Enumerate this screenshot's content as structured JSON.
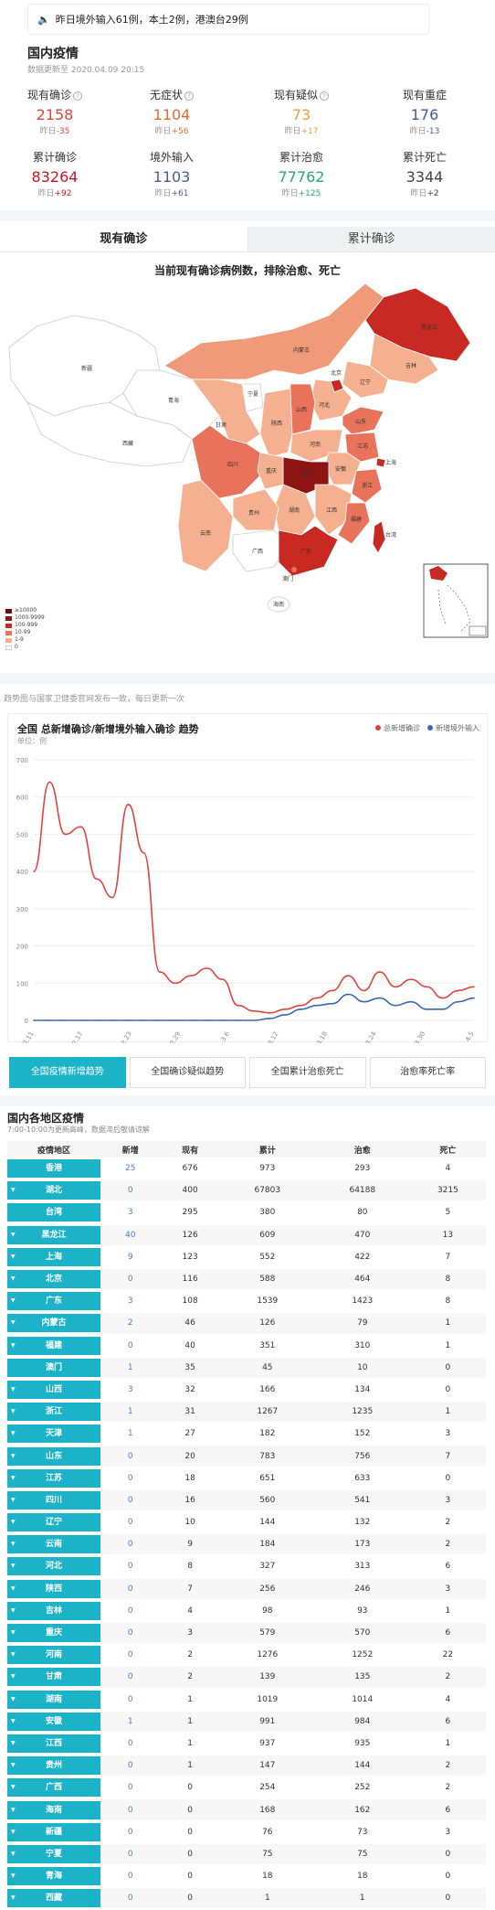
{
  "notice": {
    "text": "昨日境外输入61例，本土2例，港澳台29例"
  },
  "header": {
    "title": "国内疫情",
    "updated": "数据更新至 2020.04.09 20:15"
  },
  "stats": [
    {
      "label": "现有确诊",
      "value": "2158",
      "delta_label": "昨日",
      "delta": "-35",
      "color": "#e0443c",
      "delta_color": "#e0443c",
      "help": true
    },
    {
      "label": "无症状",
      "value": "1104",
      "delta_label": "昨日",
      "delta": "+56",
      "color": "#e36b2e",
      "delta_color": "#e36b2e",
      "help": true
    },
    {
      "label": "现有疑似",
      "value": "73",
      "delta_label": "昨日",
      "delta": "+17",
      "color": "#e8a23a",
      "delta_color": "#e8a23a",
      "help": true
    },
    {
      "label": "现有重症",
      "value": "176",
      "delta_label": "昨日",
      "delta": "-13",
      "color": "#4a5a9c",
      "delta_color": "#4a5a9c",
      "help": false
    },
    {
      "label": "累计确诊",
      "value": "83264",
      "delta_label": "昨日",
      "delta": "+92",
      "color": "#c8181e",
      "delta_color": "#c8181e",
      "help": false
    },
    {
      "label": "境外输入",
      "value": "1103",
      "delta_label": "昨日",
      "delta": "+61",
      "color": "#4a5a9c",
      "delta_color": "#4a5a9c",
      "help": false
    },
    {
      "label": "累计治愈",
      "value": "77762",
      "delta_label": "昨日",
      "delta": "+125",
      "color": "#2aa876",
      "delta_color": "#2aa876",
      "help": false
    },
    {
      "label": "累计死亡",
      "value": "3344",
      "delta_label": "昨日",
      "delta": "+2",
      "color": "#444444",
      "delta_color": "#444444",
      "help": false
    }
  ],
  "tabs": [
    "现有确诊",
    "累计确诊"
  ],
  "map": {
    "title": "当前现有确诊病例数，排除治愈、死亡",
    "legend": [
      {
        "label": "≥10000",
        "color": "#6b0a0a"
      },
      {
        "label": "1000-9999",
        "color": "#8e1414"
      },
      {
        "label": "100-999",
        "color": "#c82a23"
      },
      {
        "label": "10-99",
        "color": "#e8735a"
      },
      {
        "label": "1-9",
        "color": "#f5b08f"
      },
      {
        "label": "0",
        "color": "#ffffff"
      }
    ],
    "labels": [
      "新疆",
      "西藏",
      "青海",
      "甘肃",
      "内蒙古",
      "黑龙江",
      "吉林",
      "辽宁",
      "北京",
      "宁夏",
      "陕西",
      "山西",
      "河北",
      "山东",
      "河南",
      "四川",
      "重庆",
      "湖北",
      "安徽",
      "江苏",
      "上海",
      "浙江",
      "湖南",
      "江西",
      "福建",
      "贵州",
      "云南",
      "广西",
      "广东",
      "澳门",
      "海南",
      "台湾"
    ]
  },
  "trend": {
    "note": "趋势图与国家卫健委官网发布一致，每日更新一次"
  },
  "chart_data": {
    "type": "line",
    "title": "全国 总新增确诊/新增境外输入确诊 趋势",
    "unit": "单位：例",
    "x": [
      "2.12",
      "2.14",
      "2.16",
      "2.18",
      "2.20",
      "2.22",
      "2.24",
      "2.26",
      "2.28",
      "3.01",
      "3.03",
      "3.05",
      "3.07",
      "3.09",
      "3.11",
      "3.13",
      "3.15",
      "3.17",
      "3.19",
      "3.21",
      "3.23",
      "3.25",
      "3.27",
      "3.29",
      "3.31",
      "4.02",
      "4.04",
      "4.06",
      "4.08"
    ],
    "x_tick_labels": [
      "2.11",
      "2.17",
      "2.23",
      "2.29",
      "3.6",
      "3.12",
      "3.18",
      "3.24",
      "3.30",
      "4.5"
    ],
    "ylim": [
      0,
      700
    ],
    "yticks": [
      0,
      100,
      200,
      300,
      400,
      500,
      600,
      700
    ],
    "series": [
      {
        "name": "总新增确诊",
        "color": "#e0443c",
        "values": [
          400,
          640,
          500,
          520,
          380,
          330,
          580,
          450,
          130,
          100,
          120,
          140,
          110,
          40,
          25,
          20,
          30,
          40,
          60,
          80,
          120,
          80,
          130,
          90,
          110,
          90,
          60,
          80,
          90
        ]
      },
      {
        "name": "新增境外输入",
        "color": "#3a68b7",
        "values": [
          0,
          0,
          0,
          0,
          0,
          0,
          0,
          0,
          0,
          0,
          0,
          0,
          0,
          0,
          0,
          5,
          15,
          30,
          40,
          45,
          70,
          50,
          60,
          40,
          50,
          30,
          30,
          50,
          60
        ]
      }
    ],
    "grid": true,
    "legend": "top-right"
  },
  "buttons": [
    {
      "label": "全国疫情\n新增趋势",
      "selected": true
    },
    {
      "label": "全国确诊\n疑似趋势",
      "selected": false
    },
    {
      "label": "全国累计\n治愈死亡",
      "selected": false
    },
    {
      "label": "治愈率\n死亡率",
      "selected": false
    }
  ],
  "regions": {
    "title": "国内各地区疫情",
    "subtitle": "7:00-10:00为更新高峰，数据滞后敬请谅解",
    "headers": [
      "疫情地区",
      "新增",
      "现有",
      "累计",
      "治愈",
      "死亡"
    ],
    "rows": [
      {
        "name": "香港",
        "arrow": false,
        "new": "25",
        "cur": "676",
        "total": "973",
        "cured": "293",
        "dead": "4"
      },
      {
        "name": "湖北",
        "arrow": true,
        "new": "0",
        "cur": "400",
        "total": "67803",
        "cured": "64188",
        "dead": "3215"
      },
      {
        "name": "台湾",
        "arrow": false,
        "new": "3",
        "cur": "295",
        "total": "380",
        "cured": "80",
        "dead": "5"
      },
      {
        "name": "黑龙江",
        "arrow": true,
        "new": "40",
        "cur": "126",
        "total": "609",
        "cured": "470",
        "dead": "13"
      },
      {
        "name": "上海",
        "arrow": true,
        "new": "9",
        "cur": "123",
        "total": "552",
        "cured": "422",
        "dead": "7"
      },
      {
        "name": "北京",
        "arrow": true,
        "new": "0",
        "cur": "116",
        "total": "588",
        "cured": "464",
        "dead": "8"
      },
      {
        "name": "广东",
        "arrow": true,
        "new": "3",
        "cur": "108",
        "total": "1539",
        "cured": "1423",
        "dead": "8"
      },
      {
        "name": "内蒙古",
        "arrow": true,
        "new": "2",
        "cur": "46",
        "total": "126",
        "cured": "79",
        "dead": "1"
      },
      {
        "name": "福建",
        "arrow": true,
        "new": "0",
        "cur": "40",
        "total": "351",
        "cured": "310",
        "dead": "1"
      },
      {
        "name": "澳门",
        "arrow": false,
        "new": "1",
        "cur": "35",
        "total": "45",
        "cured": "10",
        "dead": "0"
      },
      {
        "name": "山西",
        "arrow": true,
        "new": "3",
        "cur": "32",
        "total": "166",
        "cured": "134",
        "dead": "0"
      },
      {
        "name": "浙江",
        "arrow": true,
        "new": "1",
        "cur": "31",
        "total": "1267",
        "cured": "1235",
        "dead": "1"
      },
      {
        "name": "天津",
        "arrow": true,
        "new": "1",
        "cur": "27",
        "total": "182",
        "cured": "152",
        "dead": "3"
      },
      {
        "name": "山东",
        "arrow": true,
        "new": "0",
        "cur": "20",
        "total": "783",
        "cured": "756",
        "dead": "7"
      },
      {
        "name": "江苏",
        "arrow": true,
        "new": "0",
        "cur": "18",
        "total": "651",
        "cured": "633",
        "dead": "0"
      },
      {
        "name": "四川",
        "arrow": true,
        "new": "0",
        "cur": "16",
        "total": "560",
        "cured": "541",
        "dead": "3"
      },
      {
        "name": "辽宁",
        "arrow": true,
        "new": "0",
        "cur": "10",
        "total": "144",
        "cured": "132",
        "dead": "2"
      },
      {
        "name": "云南",
        "arrow": true,
        "new": "0",
        "cur": "9",
        "total": "184",
        "cured": "173",
        "dead": "2"
      },
      {
        "name": "河北",
        "arrow": true,
        "new": "0",
        "cur": "8",
        "total": "327",
        "cured": "313",
        "dead": "6"
      },
      {
        "name": "陕西",
        "arrow": true,
        "new": "0",
        "cur": "7",
        "total": "256",
        "cured": "246",
        "dead": "3"
      },
      {
        "name": "吉林",
        "arrow": true,
        "new": "0",
        "cur": "4",
        "total": "98",
        "cured": "93",
        "dead": "1"
      },
      {
        "name": "重庆",
        "arrow": true,
        "new": "0",
        "cur": "3",
        "total": "579",
        "cured": "570",
        "dead": "6"
      },
      {
        "name": "河南",
        "arrow": true,
        "new": "0",
        "cur": "2",
        "total": "1276",
        "cured": "1252",
        "dead": "22"
      },
      {
        "name": "甘肃",
        "arrow": true,
        "new": "0",
        "cur": "2",
        "total": "139",
        "cured": "135",
        "dead": "2"
      },
      {
        "name": "湖南",
        "arrow": true,
        "new": "0",
        "cur": "1",
        "total": "1019",
        "cured": "1014",
        "dead": "4"
      },
      {
        "name": "安徽",
        "arrow": true,
        "new": "1",
        "cur": "1",
        "total": "991",
        "cured": "984",
        "dead": "6"
      },
      {
        "name": "江西",
        "arrow": true,
        "new": "0",
        "cur": "1",
        "total": "937",
        "cured": "935",
        "dead": "1"
      },
      {
        "name": "贵州",
        "arrow": true,
        "new": "0",
        "cur": "1",
        "total": "147",
        "cured": "144",
        "dead": "2"
      },
      {
        "name": "广西",
        "arrow": true,
        "new": "0",
        "cur": "0",
        "total": "254",
        "cured": "252",
        "dead": "2"
      },
      {
        "name": "海南",
        "arrow": true,
        "new": "0",
        "cur": "0",
        "total": "168",
        "cured": "162",
        "dead": "6"
      },
      {
        "name": "新疆",
        "arrow": true,
        "new": "0",
        "cur": "0",
        "total": "76",
        "cured": "73",
        "dead": "3"
      },
      {
        "name": "宁夏",
        "arrow": true,
        "new": "0",
        "cur": "0",
        "total": "75",
        "cured": "75",
        "dead": "0"
      },
      {
        "name": "青海",
        "arrow": true,
        "new": "0",
        "cur": "0",
        "total": "18",
        "cured": "18",
        "dead": "0"
      },
      {
        "name": "西藏",
        "arrow": true,
        "new": "0",
        "cur": "0",
        "total": "1",
        "cured": "1",
        "dead": "0"
      }
    ]
  }
}
